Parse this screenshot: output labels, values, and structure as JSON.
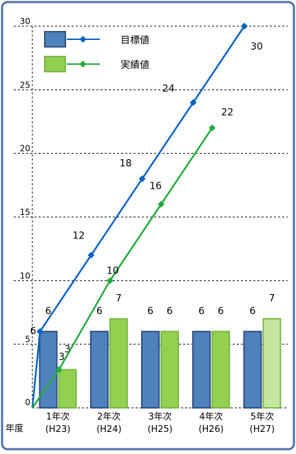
{
  "chart_data": {
    "type": "bar",
    "title": "",
    "xlabel": "年度",
    "ylabel": "",
    "ylim": [
      0,
      30
    ],
    "yticks": [
      0,
      5,
      10,
      15,
      20,
      25,
      30
    ],
    "grid": true,
    "legend_position": "top-left",
    "categories": [
      {
        "line1": "1年次",
        "line2": "(H23)"
      },
      {
        "line1": "2年次",
        "line2": "(H24)"
      },
      {
        "line1": "3年次",
        "line2": "(H25)"
      },
      {
        "line1": "4年次",
        "line2": "(H26)"
      },
      {
        "line1": "5年次",
        "line2": "(H27)"
      }
    ],
    "bar_series": [
      {
        "name": "目標値",
        "color": "#4f81bd",
        "values": [
          6,
          6,
          6,
          6,
          6
        ]
      },
      {
        "name": "実績値",
        "color": "#92d050",
        "values": [
          3,
          7,
          6,
          6,
          7
        ],
        "highlight_index": 4,
        "highlight_color": "#c6e6a0"
      }
    ],
    "line_series": [
      {
        "name": "目標値",
        "color": "#0563c1",
        "x_start": 0,
        "values": [
          6,
          12,
          18,
          24,
          30
        ]
      },
      {
        "name": "実績値",
        "color": "#22aa3c",
        "x_start": 0,
        "values": [
          3,
          10,
          16,
          22
        ]
      }
    ],
    "legend": [
      {
        "label": "目標値",
        "bar_color": "#4f81bd",
        "line_color": "#0563c1"
      },
      {
        "label": "実績値",
        "bar_color": "#92d050",
        "line_color": "#22aa3c"
      }
    ]
  }
}
